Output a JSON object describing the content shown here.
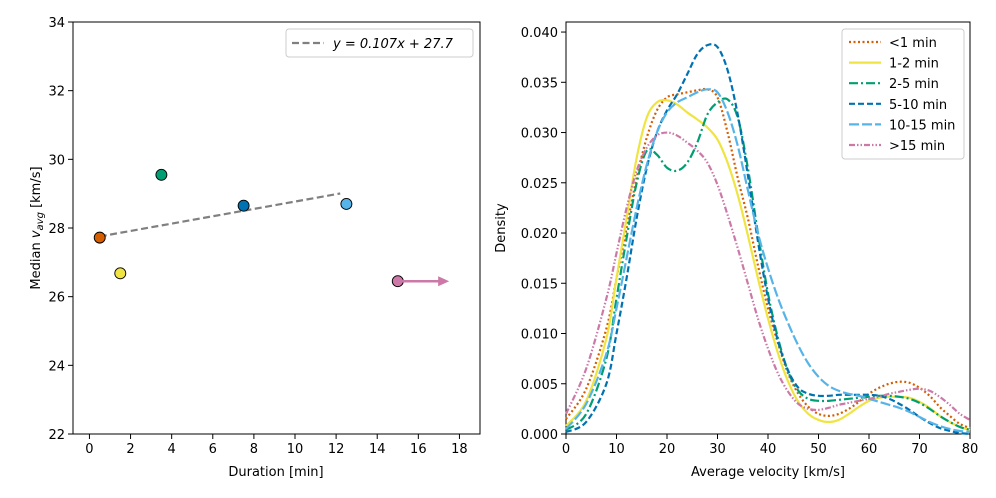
{
  "chart_data": [
    {
      "type": "scatter",
      "xlabel": "Duration [min]",
      "ylabel_prefix": "Median ",
      "ylabel_var": "v",
      "ylabel_sub": "avg",
      "ylabel_suffix": " [km/s]",
      "xlim": [
        -0.8,
        19.0
      ],
      "ylim": [
        22,
        34
      ],
      "xticks": [
        0,
        2,
        4,
        6,
        8,
        10,
        12,
        14,
        16,
        18
      ],
      "yticks": [
        22,
        24,
        26,
        28,
        30,
        32,
        34
      ],
      "points": [
        {
          "x": 0.5,
          "y": 27.72,
          "color": "#d55e00"
        },
        {
          "x": 1.5,
          "y": 26.68,
          "color": "#f0e442"
        },
        {
          "x": 3.5,
          "y": 29.55,
          "color": "#009e73"
        },
        {
          "x": 7.5,
          "y": 28.65,
          "color": "#0072b2"
        },
        {
          "x": 12.5,
          "y": 28.7,
          "color": "#56b4e9"
        },
        {
          "x": 15.0,
          "y": 26.45,
          "color": "#cc79a7"
        }
      ],
      "arrow": {
        "x_start": 15.0,
        "x_end": 17.5,
        "y": 26.45,
        "color": "#cc79a7"
      },
      "fit": {
        "slope": 0.107,
        "intercept": 27.7,
        "x_range": [
          0.5,
          12.5
        ],
        "color": "#808080"
      },
      "legend": {
        "label": "y = 0.107x + 27.7",
        "location": "upper right"
      }
    },
    {
      "type": "line",
      "xlabel": "Average velocity [km/s]",
      "ylabel": "Density",
      "xlim": [
        0,
        80
      ],
      "ylim": [
        0,
        0.041
      ],
      "xticks": [
        0,
        10,
        20,
        30,
        40,
        50,
        60,
        70,
        80
      ],
      "yticks": [
        "0.000",
        "0.005",
        "0.010",
        "0.015",
        "0.020",
        "0.025",
        "0.030",
        "0.035",
        "0.040"
      ],
      "x": [
        0,
        4,
        8,
        10,
        12,
        14,
        16,
        18,
        20,
        22,
        24,
        26,
        28,
        30,
        32,
        34,
        36,
        38,
        40,
        42,
        44,
        46,
        48,
        50,
        52,
        54,
        56,
        58,
        60,
        62,
        64,
        66,
        68,
        70,
        72,
        74,
        76,
        78,
        80
      ],
      "series": [
        {
          "name": "<1 min",
          "color": "#d55e00",
          "dash": "2,2.5",
          "values": [
            0.0015,
            0.0045,
            0.0105,
            0.0155,
            0.0205,
            0.0255,
            0.0295,
            0.0322,
            0.0335,
            0.0338,
            0.034,
            0.0342,
            0.0343,
            0.0335,
            0.03,
            0.0255,
            0.0215,
            0.0168,
            0.0125,
            0.009,
            0.006,
            0.004,
            0.0027,
            0.002,
            0.0018,
            0.002,
            0.0025,
            0.0032,
            0.004,
            0.0046,
            0.005,
            0.0052,
            0.0051,
            0.0046,
            0.0038,
            0.0027,
            0.0018,
            0.001,
            0.0006
          ]
        },
        {
          "name": "1-2 min",
          "color": "#f0e442",
          "dash": "",
          "values": [
            0.0008,
            0.0033,
            0.0095,
            0.0155,
            0.0215,
            0.0275,
            0.0315,
            0.033,
            0.0332,
            0.0328,
            0.032,
            0.0313,
            0.0305,
            0.0293,
            0.027,
            0.0238,
            0.0198,
            0.0155,
            0.0115,
            0.008,
            0.0052,
            0.0032,
            0.002,
            0.0014,
            0.0012,
            0.0014,
            0.002,
            0.0027,
            0.0033,
            0.0036,
            0.0037,
            0.0037,
            0.0036,
            0.0032,
            0.0026,
            0.0018,
            0.0012,
            0.0007,
            0.0004
          ]
        },
        {
          "name": "2-5 min",
          "color": "#009e73",
          "dash": "9,3,2,3",
          "values": [
            0.0004,
            0.002,
            0.0075,
            0.0135,
            0.0195,
            0.025,
            0.0282,
            0.0278,
            0.0265,
            0.0262,
            0.027,
            0.029,
            0.0318,
            0.033,
            0.0333,
            0.0315,
            0.0265,
            0.02,
            0.014,
            0.0095,
            0.0062,
            0.0043,
            0.0035,
            0.0033,
            0.0033,
            0.0034,
            0.0035,
            0.0036,
            0.0037,
            0.0038,
            0.0038,
            0.0037,
            0.0035,
            0.0031,
            0.0025,
            0.0018,
            0.0012,
            0.0007,
            0.0004
          ]
        },
        {
          "name": "5-10 min",
          "color": "#0072b2",
          "dash": "6,3",
          "values": [
            0.0002,
            0.0012,
            0.005,
            0.01,
            0.0155,
            0.0215,
            0.0265,
            0.03,
            0.0322,
            0.0338,
            0.0358,
            0.0378,
            0.0387,
            0.0385,
            0.0362,
            0.0318,
            0.0258,
            0.0192,
            0.0135,
            0.0092,
            0.0063,
            0.0046,
            0.004,
            0.0038,
            0.0038,
            0.0039,
            0.0039,
            0.0039,
            0.0039,
            0.0038,
            0.0035,
            0.003,
            0.0024,
            0.0017,
            0.0011,
            0.0006,
            0.0003,
            0.0001,
            0.0
          ]
        },
        {
          "name": "10-15 min",
          "color": "#56b4e9",
          "dash": "10,3",
          "values": [
            0.0005,
            0.003,
            0.008,
            0.0125,
            0.0175,
            0.0225,
            0.0268,
            0.03,
            0.032,
            0.033,
            0.0335,
            0.034,
            0.0343,
            0.034,
            0.032,
            0.0287,
            0.0243,
            0.02,
            0.0165,
            0.0135,
            0.011,
            0.0088,
            0.007,
            0.0057,
            0.0048,
            0.0043,
            0.004,
            0.0038,
            0.0035,
            0.0032,
            0.0029,
            0.0026,
            0.0022,
            0.0017,
            0.0012,
            0.0008,
            0.0005,
            0.0003,
            0.0002
          ]
        },
        {
          "name": ">15 min",
          "color": "#cc79a7",
          "dash": "6,2,1.5,2,1.5,2",
          "values": [
            0.002,
            0.0065,
            0.0135,
            0.018,
            0.0225,
            0.0262,
            0.0285,
            0.0297,
            0.03,
            0.0297,
            0.029,
            0.0282,
            0.027,
            0.0248,
            0.0218,
            0.0185,
            0.015,
            0.0115,
            0.0085,
            0.006,
            0.0042,
            0.003,
            0.0025,
            0.0024,
            0.0026,
            0.0029,
            0.0031,
            0.0033,
            0.0035,
            0.0037,
            0.004,
            0.0042,
            0.0044,
            0.0045,
            0.0043,
            0.0037,
            0.0029,
            0.002,
            0.0014
          ]
        }
      ],
      "legend": {
        "location": "upper right"
      }
    }
  ]
}
